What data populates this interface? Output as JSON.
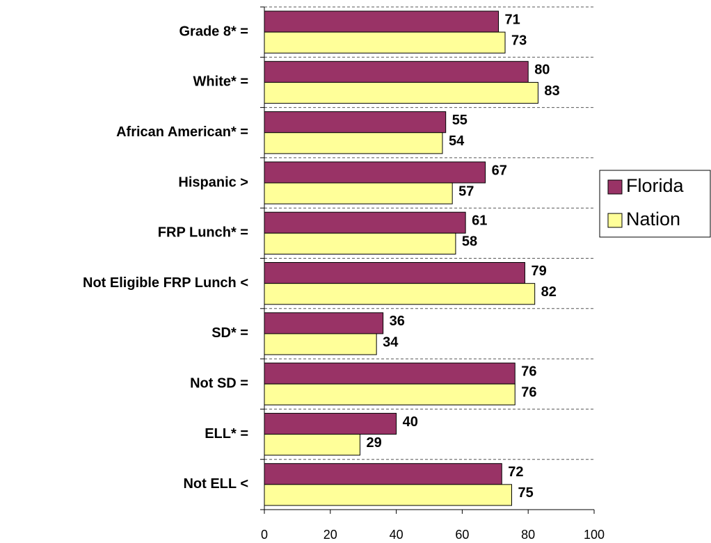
{
  "chart_data": {
    "type": "bar",
    "orientation": "horizontal",
    "categories": [
      "Grade 8* =",
      "White* =",
      "African American* =",
      "Hispanic >",
      "FRP Lunch* =",
      "Not Eligible FRP Lunch <",
      "SD* =",
      "Not SD =",
      "ELL* =",
      "Not ELL <"
    ],
    "series": [
      {
        "name": "Florida",
        "color": "#993366",
        "values": [
          71,
          80,
          55,
          67,
          61,
          79,
          36,
          76,
          40,
          72
        ]
      },
      {
        "name": "Nation",
        "color": "#ffff99",
        "values": [
          73,
          83,
          54,
          57,
          58,
          82,
          34,
          76,
          29,
          75
        ]
      }
    ],
    "xlim": [
      0,
      100
    ],
    "xticks": [
      0,
      20,
      40,
      60,
      80,
      100
    ],
    "legend": "right"
  }
}
